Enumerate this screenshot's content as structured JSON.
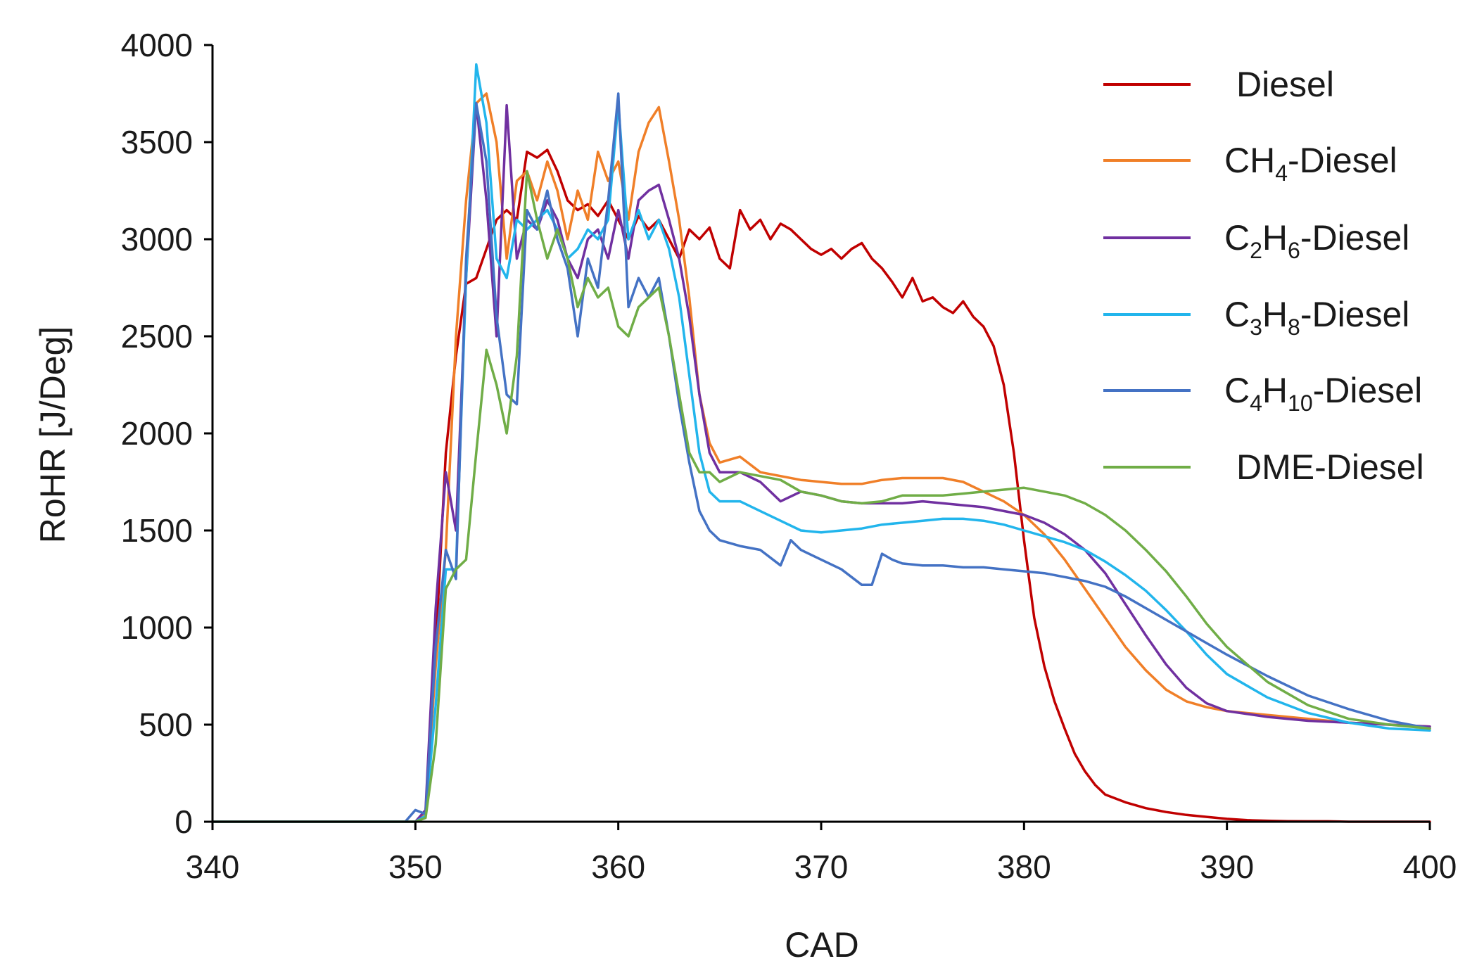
{
  "chart_data": {
    "type": "line",
    "title": "",
    "xlabel": "CAD",
    "ylabel": "RoHR [J/Deg]",
    "xlim": [
      340,
      400
    ],
    "ylim": [
      0,
      4000
    ],
    "xticks": [
      "340",
      "350",
      "360",
      "370",
      "380",
      "390",
      "400"
    ],
    "yticks": [
      "0",
      "500",
      "1000",
      "1500",
      "2000",
      "2500",
      "3000",
      "3500",
      "4000"
    ],
    "grid": false,
    "legend_position": "top-right",
    "series": [
      {
        "name": "Diesel",
        "label_main": "Diesel",
        "label_parts": [],
        "color": "#c00000",
        "x": [
          340,
          350,
          350.5,
          351,
          351.5,
          352,
          352.5,
          353,
          353.5,
          354,
          354.5,
          355,
          355.5,
          356,
          356.5,
          357,
          357.5,
          358,
          358.5,
          359,
          359.5,
          360,
          360.5,
          361,
          361.5,
          362,
          362.5,
          363,
          363.5,
          364,
          364.5,
          365,
          365.5,
          366,
          366.5,
          367,
          367.5,
          368,
          368.5,
          369,
          369.5,
          370,
          370.5,
          371,
          371.5,
          372,
          372.5,
          373,
          373.5,
          374,
          374.5,
          375,
          375.5,
          376,
          376.5,
          377,
          377.5,
          378,
          378.5,
          379,
          379.5,
          380,
          380.5,
          381,
          381.5,
          382,
          382.5,
          383,
          383.5,
          384,
          385,
          386,
          387,
          388,
          389,
          390,
          391,
          392,
          393,
          394,
          395,
          396,
          400
        ],
        "values": [
          0,
          0,
          50,
          900,
          1900,
          2400,
          2770,
          2800,
          2950,
          3100,
          3150,
          3100,
          3450,
          3420,
          3460,
          3350,
          3200,
          3150,
          3180,
          3120,
          3200,
          3100,
          3000,
          3120,
          3050,
          3100,
          3000,
          2900,
          3050,
          3000,
          3060,
          2900,
          2850,
          3150,
          3050,
          3100,
          3000,
          3080,
          3050,
          3000,
          2950,
          2920,
          2950,
          2900,
          2950,
          2980,
          2900,
          2850,
          2780,
          2700,
          2800,
          2680,
          2700,
          2650,
          2620,
          2680,
          2600,
          2550,
          2450,
          2250,
          1900,
          1450,
          1050,
          800,
          620,
          480,
          350,
          260,
          190,
          140,
          100,
          70,
          50,
          35,
          25,
          15,
          8,
          5,
          3,
          2,
          2,
          0,
          0
        ]
      },
      {
        "name": "CH4-Diesel",
        "label_main": "CH",
        "label_parts": [
          [
            "4",
            "sub"
          ],
          [
            "-Diesel",
            "text"
          ]
        ],
        "color": "#f07f28",
        "x": [
          340,
          350,
          350.5,
          351,
          351.5,
          352,
          352.5,
          353,
          353.5,
          354,
          354.5,
          355,
          355.5,
          356,
          356.5,
          357,
          357.5,
          358,
          358.5,
          359,
          359.5,
          360,
          360.5,
          361,
          361.5,
          362,
          362.5,
          363,
          363.5,
          364,
          364.5,
          365,
          366,
          367,
          368,
          369,
          370,
          371,
          372,
          373,
          374,
          375,
          376,
          377,
          378,
          379,
          380,
          381,
          382,
          383,
          384,
          385,
          386,
          387,
          388,
          389,
          390,
          392,
          394,
          396,
          398,
          400
        ],
        "values": [
          0,
          0,
          50,
          800,
          1400,
          2500,
          3200,
          3700,
          3750,
          3500,
          2900,
          3300,
          3350,
          3200,
          3400,
          3250,
          3000,
          3250,
          3100,
          3450,
          3300,
          3400,
          3100,
          3450,
          3600,
          3680,
          3400,
          3100,
          2700,
          2200,
          1950,
          1850,
          1880,
          1800,
          1780,
          1760,
          1750,
          1740,
          1740,
          1760,
          1770,
          1770,
          1770,
          1750,
          1700,
          1650,
          1580,
          1480,
          1350,
          1200,
          1050,
          900,
          780,
          680,
          620,
          590,
          570,
          550,
          530,
          510,
          500,
          490
        ]
      },
      {
        "name": "C2H6-Diesel",
        "label_main": "C",
        "label_parts": [
          [
            "2",
            "sub"
          ],
          [
            "H",
            "text"
          ],
          [
            "6",
            "sub"
          ],
          [
            "-Diesel",
            "text"
          ]
        ],
        "color": "#7030a0",
        "x": [
          340,
          350,
          350.5,
          351,
          351.5,
          352,
          352.5,
          353,
          353.5,
          354,
          354.5,
          355,
          355.5,
          356,
          356.5,
          357,
          357.5,
          358,
          358.5,
          359,
          359.5,
          360,
          360.5,
          361,
          361.5,
          362,
          362.5,
          363,
          363.5,
          364,
          364.5,
          365,
          366,
          367,
          368,
          369,
          370,
          371,
          372,
          373,
          374,
          375,
          376,
          377,
          378,
          379,
          380,
          381,
          382,
          383,
          384,
          385,
          386,
          387,
          388,
          389,
          390,
          392,
          394,
          396,
          398,
          400
        ],
        "values": [
          0,
          0,
          60,
          1100,
          1800,
          1500,
          2800,
          3700,
          3200,
          2500,
          3690,
          2900,
          3100,
          3050,
          3200,
          3100,
          2900,
          2800,
          3000,
          3050,
          2900,
          3150,
          2900,
          3200,
          3250,
          3280,
          3100,
          2900,
          2600,
          2200,
          1900,
          1800,
          1800,
          1750,
          1650,
          1700,
          1680,
          1650,
          1640,
          1640,
          1640,
          1650,
          1640,
          1630,
          1620,
          1600,
          1580,
          1540,
          1480,
          1400,
          1280,
          1120,
          960,
          810,
          690,
          610,
          570,
          540,
          520,
          510,
          500,
          490
        ]
      },
      {
        "name": "C3H8-Diesel",
        "label_main": "C",
        "label_parts": [
          [
            "3",
            "sub"
          ],
          [
            "H",
            "text"
          ],
          [
            "8",
            "sub"
          ],
          [
            "-Diesel",
            "text"
          ]
        ],
        "color": "#22b5ec",
        "x": [
          340,
          350,
          350.5,
          351,
          351.5,
          352,
          352.5,
          353,
          353.5,
          354,
          354.5,
          355,
          355.5,
          356,
          356.5,
          357,
          357.5,
          358,
          358.5,
          359,
          359.5,
          360,
          360.5,
          361,
          361.5,
          362,
          362.5,
          363,
          363.5,
          364,
          364.5,
          365,
          366,
          367,
          368,
          369,
          370,
          371,
          372,
          373,
          374,
          375,
          376,
          377,
          378,
          379,
          380,
          381,
          382,
          383,
          384,
          385,
          386,
          387,
          388,
          389,
          390,
          392,
          394,
          396,
          398,
          400
        ],
        "values": [
          0,
          0,
          30,
          600,
          1300,
          1300,
          2800,
          3900,
          3600,
          2900,
          2800,
          3100,
          3050,
          3100,
          3150,
          3050,
          2900,
          2950,
          3050,
          3000,
          3100,
          3700,
          3000,
          3150,
          3000,
          3100,
          2950,
          2700,
          2300,
          1900,
          1700,
          1650,
          1650,
          1600,
          1550,
          1500,
          1490,
          1500,
          1510,
          1530,
          1540,
          1550,
          1560,
          1560,
          1550,
          1530,
          1500,
          1470,
          1440,
          1400,
          1340,
          1270,
          1190,
          1090,
          980,
          860,
          760,
          640,
          560,
          510,
          480,
          470
        ]
      },
      {
        "name": "C4H10-Diesel",
        "label_main": "C",
        "label_parts": [
          [
            "4",
            "sub"
          ],
          [
            "H",
            "text"
          ],
          [
            "10",
            "sub"
          ],
          [
            "-Diesel",
            "text"
          ]
        ],
        "color": "#4472c4",
        "x": [
          340,
          349.5,
          350,
          350.5,
          351,
          351.5,
          352,
          352.5,
          353,
          353.5,
          354,
          354.5,
          355,
          355.5,
          356,
          356.5,
          357,
          357.5,
          358,
          358.5,
          359,
          359.5,
          360,
          360.5,
          361,
          361.5,
          362,
          362.5,
          363,
          363.5,
          364,
          364.5,
          365,
          366,
          367,
          368,
          368.5,
          369,
          370,
          371,
          372,
          372.5,
          373,
          373.5,
          374,
          375,
          376,
          377,
          378,
          379,
          380,
          381,
          382,
          383,
          384,
          385,
          386,
          387,
          388,
          389,
          390,
          392,
          394,
          396,
          398,
          400
        ],
        "values": [
          0,
          0,
          60,
          40,
          900,
          1400,
          1250,
          2900,
          3700,
          3400,
          2600,
          2200,
          2150,
          3150,
          3050,
          3250,
          3000,
          2850,
          2500,
          2900,
          2750,
          3200,
          3750,
          2650,
          2800,
          2700,
          2800,
          2500,
          2150,
          1850,
          1600,
          1500,
          1450,
          1420,
          1400,
          1320,
          1450,
          1400,
          1350,
          1300,
          1220,
          1220,
          1380,
          1350,
          1330,
          1320,
          1320,
          1310,
          1310,
          1300,
          1290,
          1280,
          1260,
          1240,
          1210,
          1160,
          1100,
          1040,
          980,
          920,
          860,
          750,
          650,
          580,
          520,
          480
        ]
      },
      {
        "name": "DME-Diesel",
        "label_main": "DME-Diesel",
        "label_parts": [],
        "color": "#70ad47",
        "x": [
          340,
          350,
          350.5,
          351,
          351.5,
          352,
          352.5,
          353,
          353.5,
          354,
          354.5,
          355,
          355.5,
          356,
          356.5,
          357,
          357.5,
          358,
          358.5,
          359,
          359.5,
          360,
          360.5,
          361,
          361.5,
          362,
          362.5,
          363,
          363.5,
          364,
          364.5,
          365,
          366,
          367,
          368,
          369,
          370,
          371,
          372,
          373,
          374,
          375,
          376,
          377,
          378,
          379,
          380,
          381,
          382,
          383,
          384,
          385,
          386,
          387,
          388,
          389,
          390,
          392,
          394,
          396,
          398,
          400
        ],
        "values": [
          0,
          0,
          20,
          400,
          1200,
          1300,
          1350,
          1900,
          2430,
          2250,
          2000,
          2400,
          3350,
          3100,
          2900,
          3050,
          2900,
          2650,
          2800,
          2700,
          2750,
          2550,
          2500,
          2650,
          2700,
          2750,
          2500,
          2200,
          1900,
          1800,
          1800,
          1750,
          1800,
          1780,
          1760,
          1700,
          1680,
          1650,
          1640,
          1650,
          1680,
          1680,
          1680,
          1690,
          1700,
          1710,
          1720,
          1700,
          1680,
          1640,
          1580,
          1500,
          1400,
          1290,
          1160,
          1020,
          900,
          720,
          600,
          530,
          500,
          480
        ]
      }
    ]
  }
}
